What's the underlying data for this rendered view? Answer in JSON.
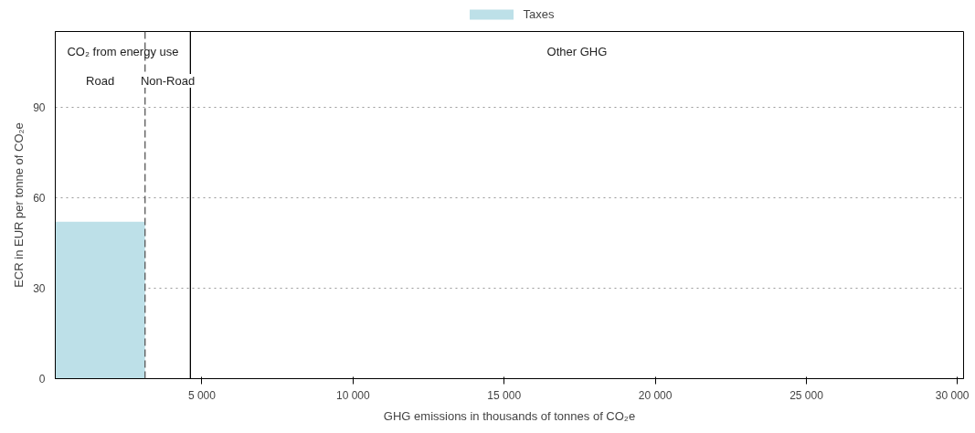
{
  "chart_data": {
    "type": "histogram",
    "xlabel": "GHG emissions in thousands of tonnes of CO₂e",
    "ylabel": "ECR in EUR per tonne of CO₂e",
    "bins": [
      150,
      3120
    ],
    "series": [
      {
        "name": "Taxes",
        "color": "#bde0e8",
        "values": [
          52
        ]
      }
    ],
    "xlim": [
      150,
      30200
    ],
    "xticks": [
      {
        "value": 5000,
        "label": "5 000"
      },
      {
        "value": 10000,
        "label": "10 000"
      },
      {
        "value": 15000,
        "label": "15 000"
      },
      {
        "value": 20000,
        "label": "20 000"
      },
      {
        "value": 25000,
        "label": "25 000"
      },
      {
        "value": 30000,
        "label": "30 000"
      }
    ],
    "ylim": [
      0,
      115
    ],
    "yticks": [
      0,
      30,
      60,
      90
    ],
    "ref_lines": [
      {
        "axis": "x",
        "value": 3120,
        "line_style": "dashed",
        "color": "#555555"
      },
      {
        "axis": "x",
        "value": 4620,
        "line_style": "solid",
        "color": "#000000"
      }
    ],
    "annotations": [
      "CO₂ from energy use",
      "Road",
      "Non-Road",
      "Other GHG"
    ],
    "grid": "y",
    "legend": "top"
  }
}
